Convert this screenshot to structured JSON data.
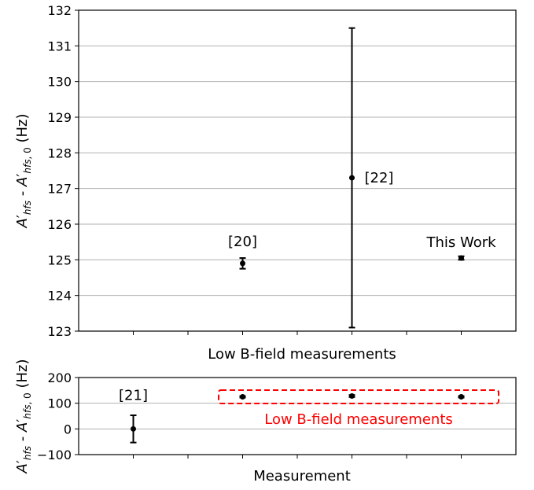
{
  "chart_data": [
    {
      "type": "scatter",
      "panel": "top",
      "xlabel": "Low B-field measurements",
      "ylabel": "A'hfs - A'hfs,0 (Hz)",
      "ylim": [
        123,
        132
      ],
      "yticks": [
        123,
        124,
        125,
        126,
        127,
        128,
        129,
        130,
        131,
        132
      ],
      "xlim": [
        0,
        8
      ],
      "grid": "horizontal",
      "points": [
        {
          "x": 3,
          "y": 124.9,
          "err_low": 0.15,
          "err_high": 0.15,
          "label": "[20]"
        },
        {
          "x": 5,
          "y": 127.3,
          "err_low": 4.2,
          "err_high": 4.2,
          "label": "[22]"
        },
        {
          "x": 7,
          "y": 125.05,
          "err_low": 0.05,
          "err_high": 0.05,
          "label": "This Work"
        }
      ]
    },
    {
      "type": "scatter",
      "panel": "bottom",
      "xlabel": "Measurement",
      "ylabel": "A'hfs - A'hfs,0 (Hz)",
      "ylim": [
        -100,
        200
      ],
      "yticks": [
        -100,
        0,
        100,
        200
      ],
      "ytick_labels": [
        "−100",
        "0",
        "100",
        "200"
      ],
      "xlim": [
        0,
        8
      ],
      "grid": "horizontal",
      "points": [
        {
          "x": 1,
          "y": 0,
          "err_low": 53,
          "err_high": 53,
          "label": "[21]"
        },
        {
          "x": 3,
          "y": 125,
          "err_low": 3,
          "err_high": 3,
          "label": ""
        },
        {
          "x": 5,
          "y": 128,
          "err_low": 4,
          "err_high": 4,
          "label": ""
        },
        {
          "x": 7,
          "y": 125,
          "err_low": 3,
          "err_high": 3,
          "label": ""
        }
      ],
      "annotation": {
        "text": "Low B-field measurements",
        "color": "#ff0000",
        "box_style": "dashed"
      }
    }
  ]
}
